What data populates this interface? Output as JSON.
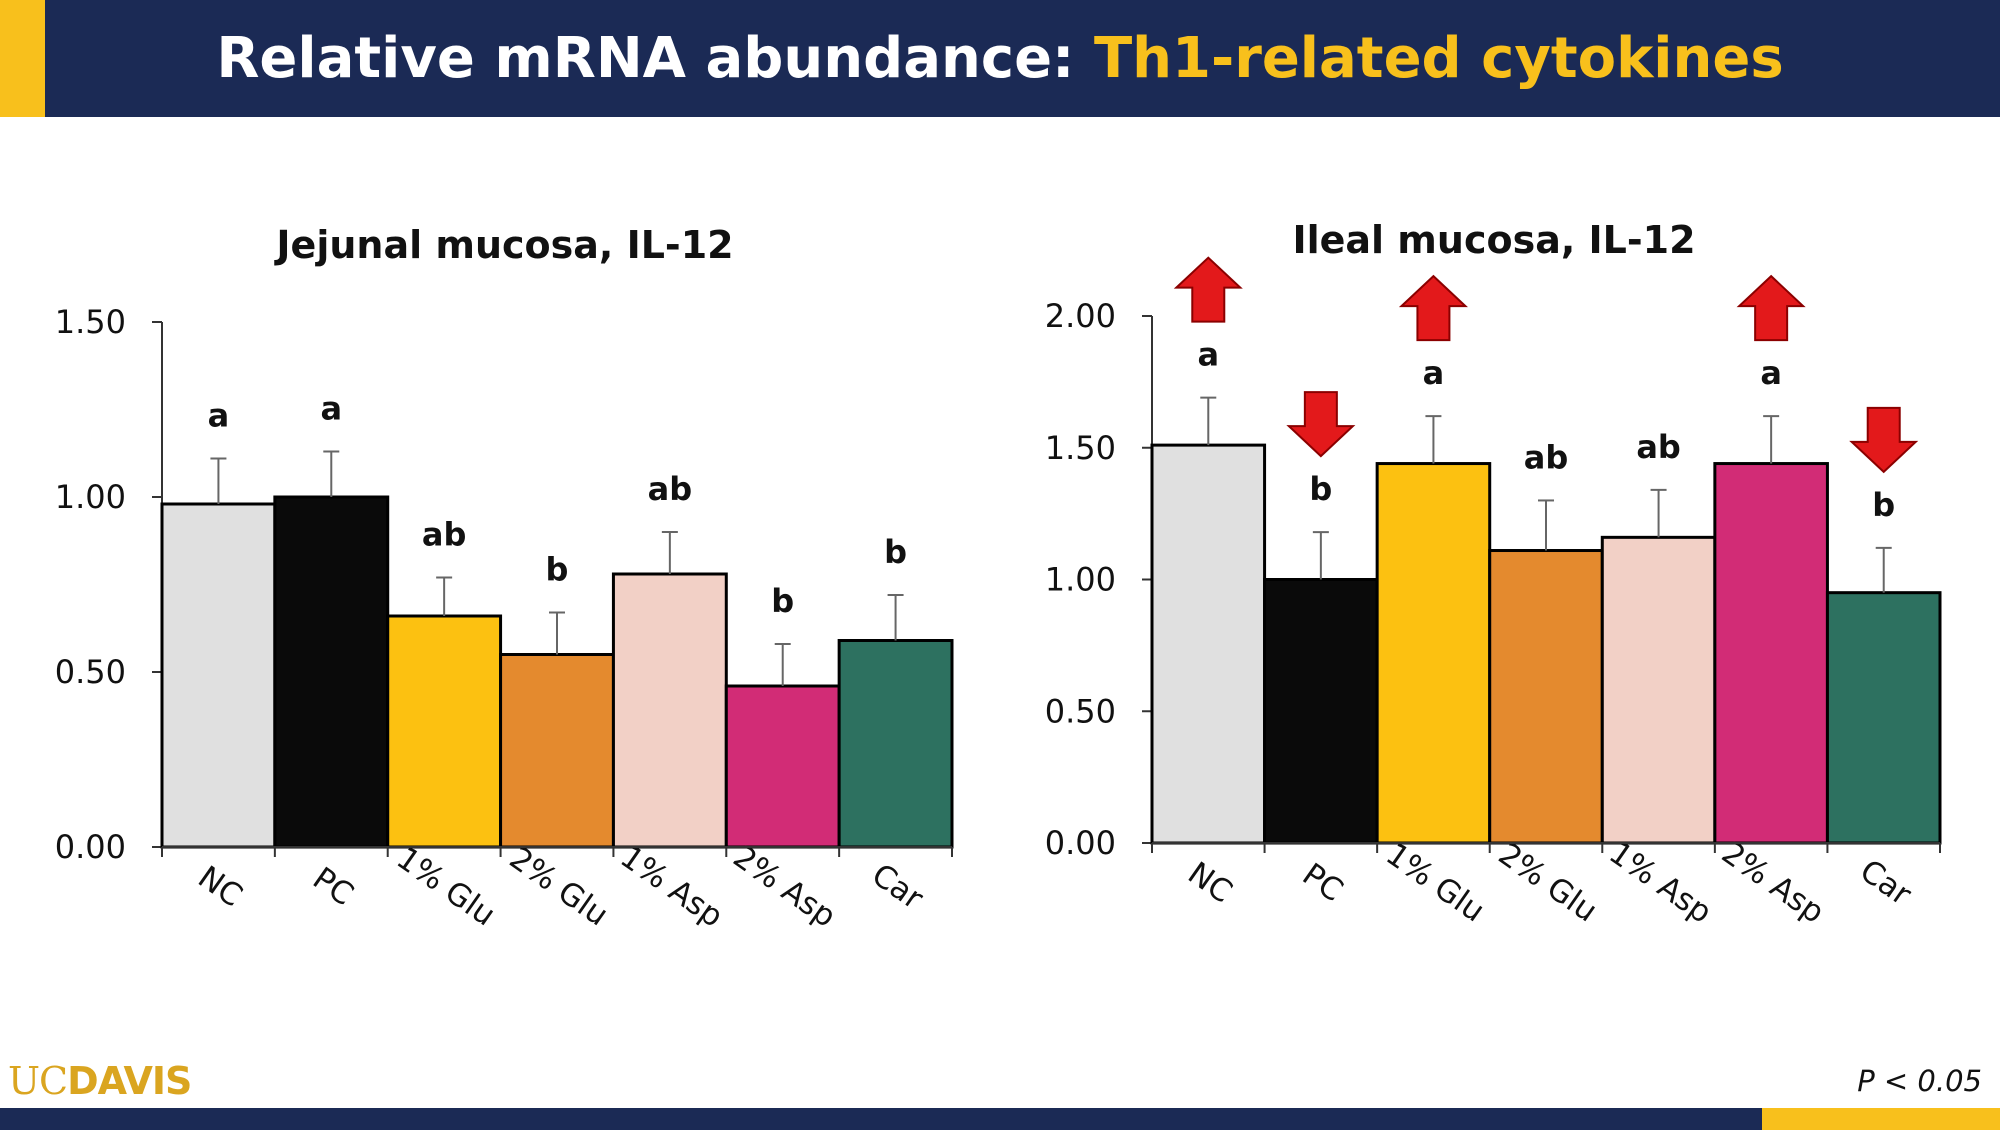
{
  "header": {
    "title_main": "Relative mRNA abundance: ",
    "title_highlight": "Th1-related cytokines"
  },
  "footer": {
    "logo_uc": "UC",
    "logo_davis": "DAVIS",
    "p_note": "P < 0.05"
  },
  "colors": {
    "header_bg": "#1b2a55",
    "accent": "#f8c01c",
    "increase_arrow": "#e3191b",
    "decrease_arrow": "#e3191b"
  },
  "chart_data": [
    {
      "type": "bar",
      "title": "Jejunal mucosa, IL-12",
      "categories": [
        "NC",
        "PC",
        "1% Glu",
        "2% Glu",
        "1% Asp",
        "2% Asp",
        "Car"
      ],
      "values": [
        0.98,
        1.0,
        0.66,
        0.55,
        0.78,
        0.46,
        0.59
      ],
      "errors": [
        0.13,
        0.13,
        0.11,
        0.12,
        0.12,
        0.12,
        0.13
      ],
      "letters": [
        "a",
        "a",
        "ab",
        "b",
        "ab",
        "b",
        "b"
      ],
      "arrows": [
        "",
        "",
        "",
        "",
        "",
        "",
        ""
      ],
      "colors": [
        "#e0e0e0",
        "#0a0a0a",
        "#fcc111",
        "#e48a2e",
        "#f2d0c6",
        "#d22c76",
        "#2d7160"
      ],
      "yticks": [
        "0.00",
        "0.50",
        "1.00",
        "1.50"
      ],
      "ylim": [
        0,
        1.5
      ],
      "xlabel": "",
      "ylabel": ""
    },
    {
      "type": "bar",
      "title": "Ileal mucosa, IL-12",
      "categories": [
        "NC",
        "PC",
        "1% Glu",
        "2% Glu",
        "1% Asp",
        "2% Asp",
        "Car"
      ],
      "values": [
        1.51,
        1.0,
        1.44,
        1.11,
        1.16,
        1.44,
        0.95
      ],
      "errors": [
        0.18,
        0.18,
        0.18,
        0.19,
        0.18,
        0.18,
        0.17
      ],
      "letters": [
        "a",
        "b",
        "a",
        "ab",
        "ab",
        "a",
        "b"
      ],
      "arrows": [
        "up",
        "down",
        "up",
        "",
        "",
        "up",
        "down"
      ],
      "colors": [
        "#e0e0e0",
        "#0a0a0a",
        "#fcc111",
        "#e48a2e",
        "#f2d0c6",
        "#d22c76",
        "#2d7160"
      ],
      "yticks": [
        "0.00",
        "0.50",
        "1.00",
        "1.50",
        "2.00"
      ],
      "ylim": [
        0,
        2.0
      ],
      "xlabel": "",
      "ylabel": ""
    }
  ]
}
